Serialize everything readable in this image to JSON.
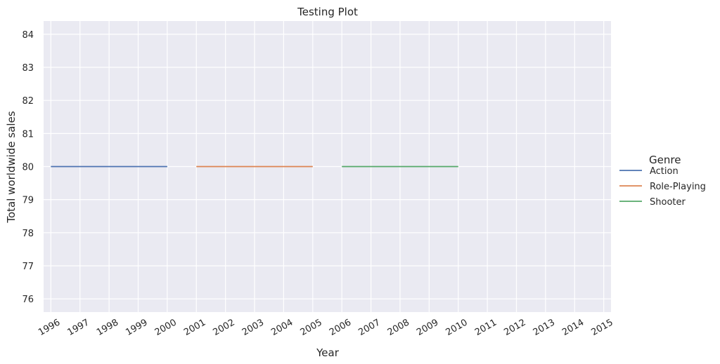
{
  "chart_data": {
    "type": "line",
    "title": "Testing Plot",
    "xlabel": "Year",
    "ylabel": "Total worldwide sales",
    "x_ticks": [
      "1996",
      "1997",
      "1998",
      "1999",
      "2000",
      "2001",
      "2002",
      "2003",
      "2004",
      "2005",
      "2006",
      "2007",
      "2008",
      "2009",
      "2010",
      "2011",
      "2012",
      "2013",
      "2014",
      "2015"
    ],
    "y_ticks": [
      76,
      77,
      78,
      79,
      80,
      81,
      82,
      83,
      84
    ],
    "xlim": [
      1995.75,
      2015.25
    ],
    "ylim": [
      75.6,
      84.4
    ],
    "grid": true,
    "legend": {
      "title": "Genre",
      "placement": "right"
    },
    "series": [
      {
        "name": "Action",
        "color": "#4c72b0",
        "x": [
          1996,
          2000
        ],
        "y": [
          80,
          80
        ]
      },
      {
        "name": "Role-Playing",
        "color": "#dd8452",
        "x": [
          2001,
          2005
        ],
        "y": [
          80,
          80
        ]
      },
      {
        "name": "Shooter",
        "color": "#55a868",
        "x": [
          2006,
          2010
        ],
        "y": [
          80,
          80
        ]
      }
    ]
  },
  "colors": {
    "plot_background": "#eaeaf2",
    "grid": "#ffffff"
  }
}
